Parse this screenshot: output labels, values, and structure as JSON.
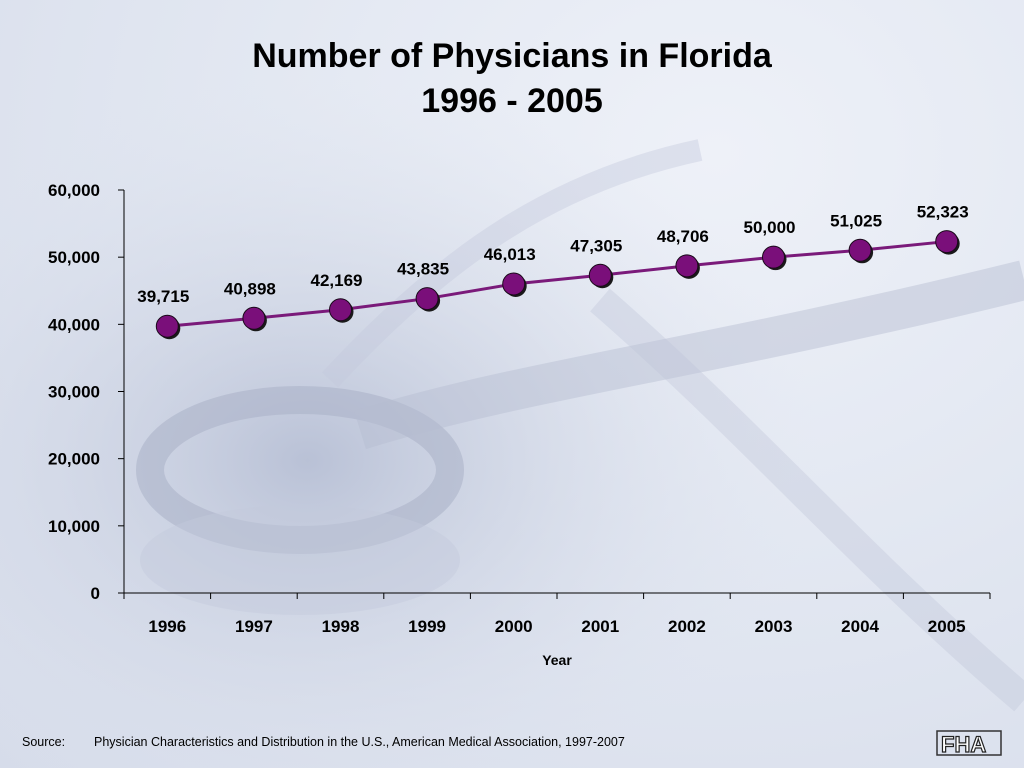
{
  "title_line1": "Number of Physicians in Florida",
  "title_line2": "1996 - 2005",
  "source_label": "Source:",
  "source_text": "Physician Characteristics and Distribution in the U.S., American Medical Association, 1997-2007",
  "logo_text": "FHA",
  "chart_data": {
    "type": "line",
    "title": "Number of Physicians in Florida 1996 - 2005",
    "xlabel": "Year",
    "ylabel": "",
    "categories": [
      "1996",
      "1997",
      "1998",
      "1999",
      "2000",
      "2001",
      "2002",
      "2003",
      "2004",
      "2005"
    ],
    "values": [
      39715,
      40898,
      42169,
      43835,
      46013,
      47305,
      48706,
      50000,
      51025,
      52323
    ],
    "data_labels": [
      "39,715",
      "40,898",
      "42,169",
      "43,835",
      "46,013",
      "47,305",
      "48,706",
      "50,000",
      "51,025",
      "52,323"
    ],
    "ylim": [
      0,
      60000
    ],
    "yticks": [
      0,
      10000,
      20000,
      30000,
      40000,
      50000,
      60000
    ],
    "ytick_labels": [
      "0",
      "10,000",
      "20,000",
      "30,000",
      "40,000",
      "50,000",
      "60,000"
    ],
    "line_color": "#7a1a7a",
    "marker_color": "#7a0f7a",
    "grid": false,
    "legend": "none"
  }
}
